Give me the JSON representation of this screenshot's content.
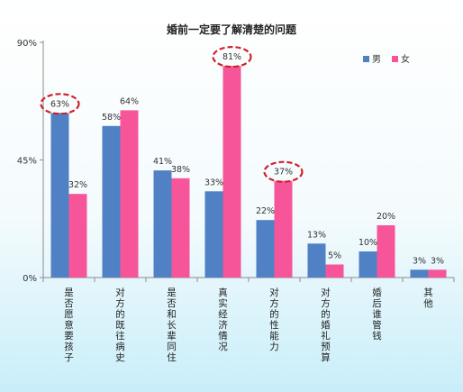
{
  "chart_data": {
    "type": "bar",
    "title": "婚前一定要了解清楚的问题",
    "categories": [
      "是否愿意要孩子",
      "对方的既往病史",
      "是否和长辈同住",
      "真实经济情况",
      "对方的性能力",
      "对方的婚礼预算",
      "婚后谁管钱",
      "其他"
    ],
    "series": [
      {
        "name": "男",
        "values": [
          63,
          58,
          41,
          33,
          22,
          13,
          10,
          3
        ],
        "labels": [
          "63%",
          "58%",
          "41%",
          "33%",
          "22%",
          "13%",
          "10%",
          "3%"
        ],
        "color": "#5181c5"
      },
      {
        "name": "女",
        "values": [
          32,
          64,
          38,
          81,
          37,
          5,
          20,
          3
        ],
        "labels": [
          "32%",
          "64%",
          "38%",
          "81%",
          "37%",
          "5%",
          "20%",
          "3%"
        ],
        "color": "#f7559a"
      }
    ],
    "ylim": [
      0,
      90
    ],
    "yticks": [
      0,
      45,
      90
    ],
    "ytick_labels": [
      "0%",
      "45%",
      "90%"
    ],
    "highlight_color": "#d0202a",
    "highlighted": [
      {
        "series": 0,
        "index": 0
      },
      {
        "series": 1,
        "index": 3
      },
      {
        "series": 1,
        "index": 4
      }
    ],
    "legend_position": "top-right",
    "grid": false
  }
}
